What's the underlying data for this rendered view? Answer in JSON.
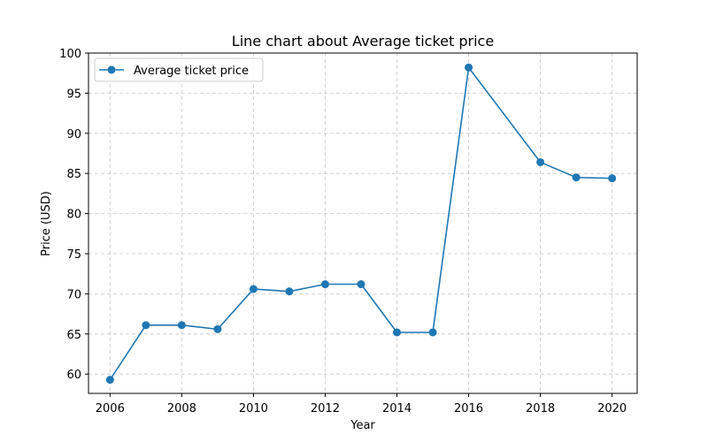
{
  "chart_data": {
    "type": "line",
    "title": "Line chart about Average ticket price",
    "xlabel": "Year",
    "ylabel": "Price (USD)",
    "xlim": [
      2005.4,
      2020.7
    ],
    "ylim": [
      57.6,
      100.0
    ],
    "x_ticks": [
      2006,
      2008,
      2010,
      2012,
      2014,
      2016,
      2018,
      2020
    ],
    "y_ticks": [
      60,
      65,
      70,
      75,
      80,
      85,
      90,
      95,
      100
    ],
    "grid": true,
    "legend_position": "top-left",
    "series": [
      {
        "name": "Average ticket price",
        "color": "#1f77b4",
        "marker": "circle",
        "x": [
          2006,
          2007,
          2008,
          2009,
          2010,
          2011,
          2012,
          2013,
          2014,
          2015,
          2016,
          2018,
          2019,
          2020
        ],
        "y": [
          59.3,
          66.1,
          66.1,
          65.6,
          70.6,
          70.3,
          71.2,
          71.2,
          65.2,
          65.2,
          98.2,
          86.4,
          84.5,
          84.4
        ]
      }
    ]
  }
}
